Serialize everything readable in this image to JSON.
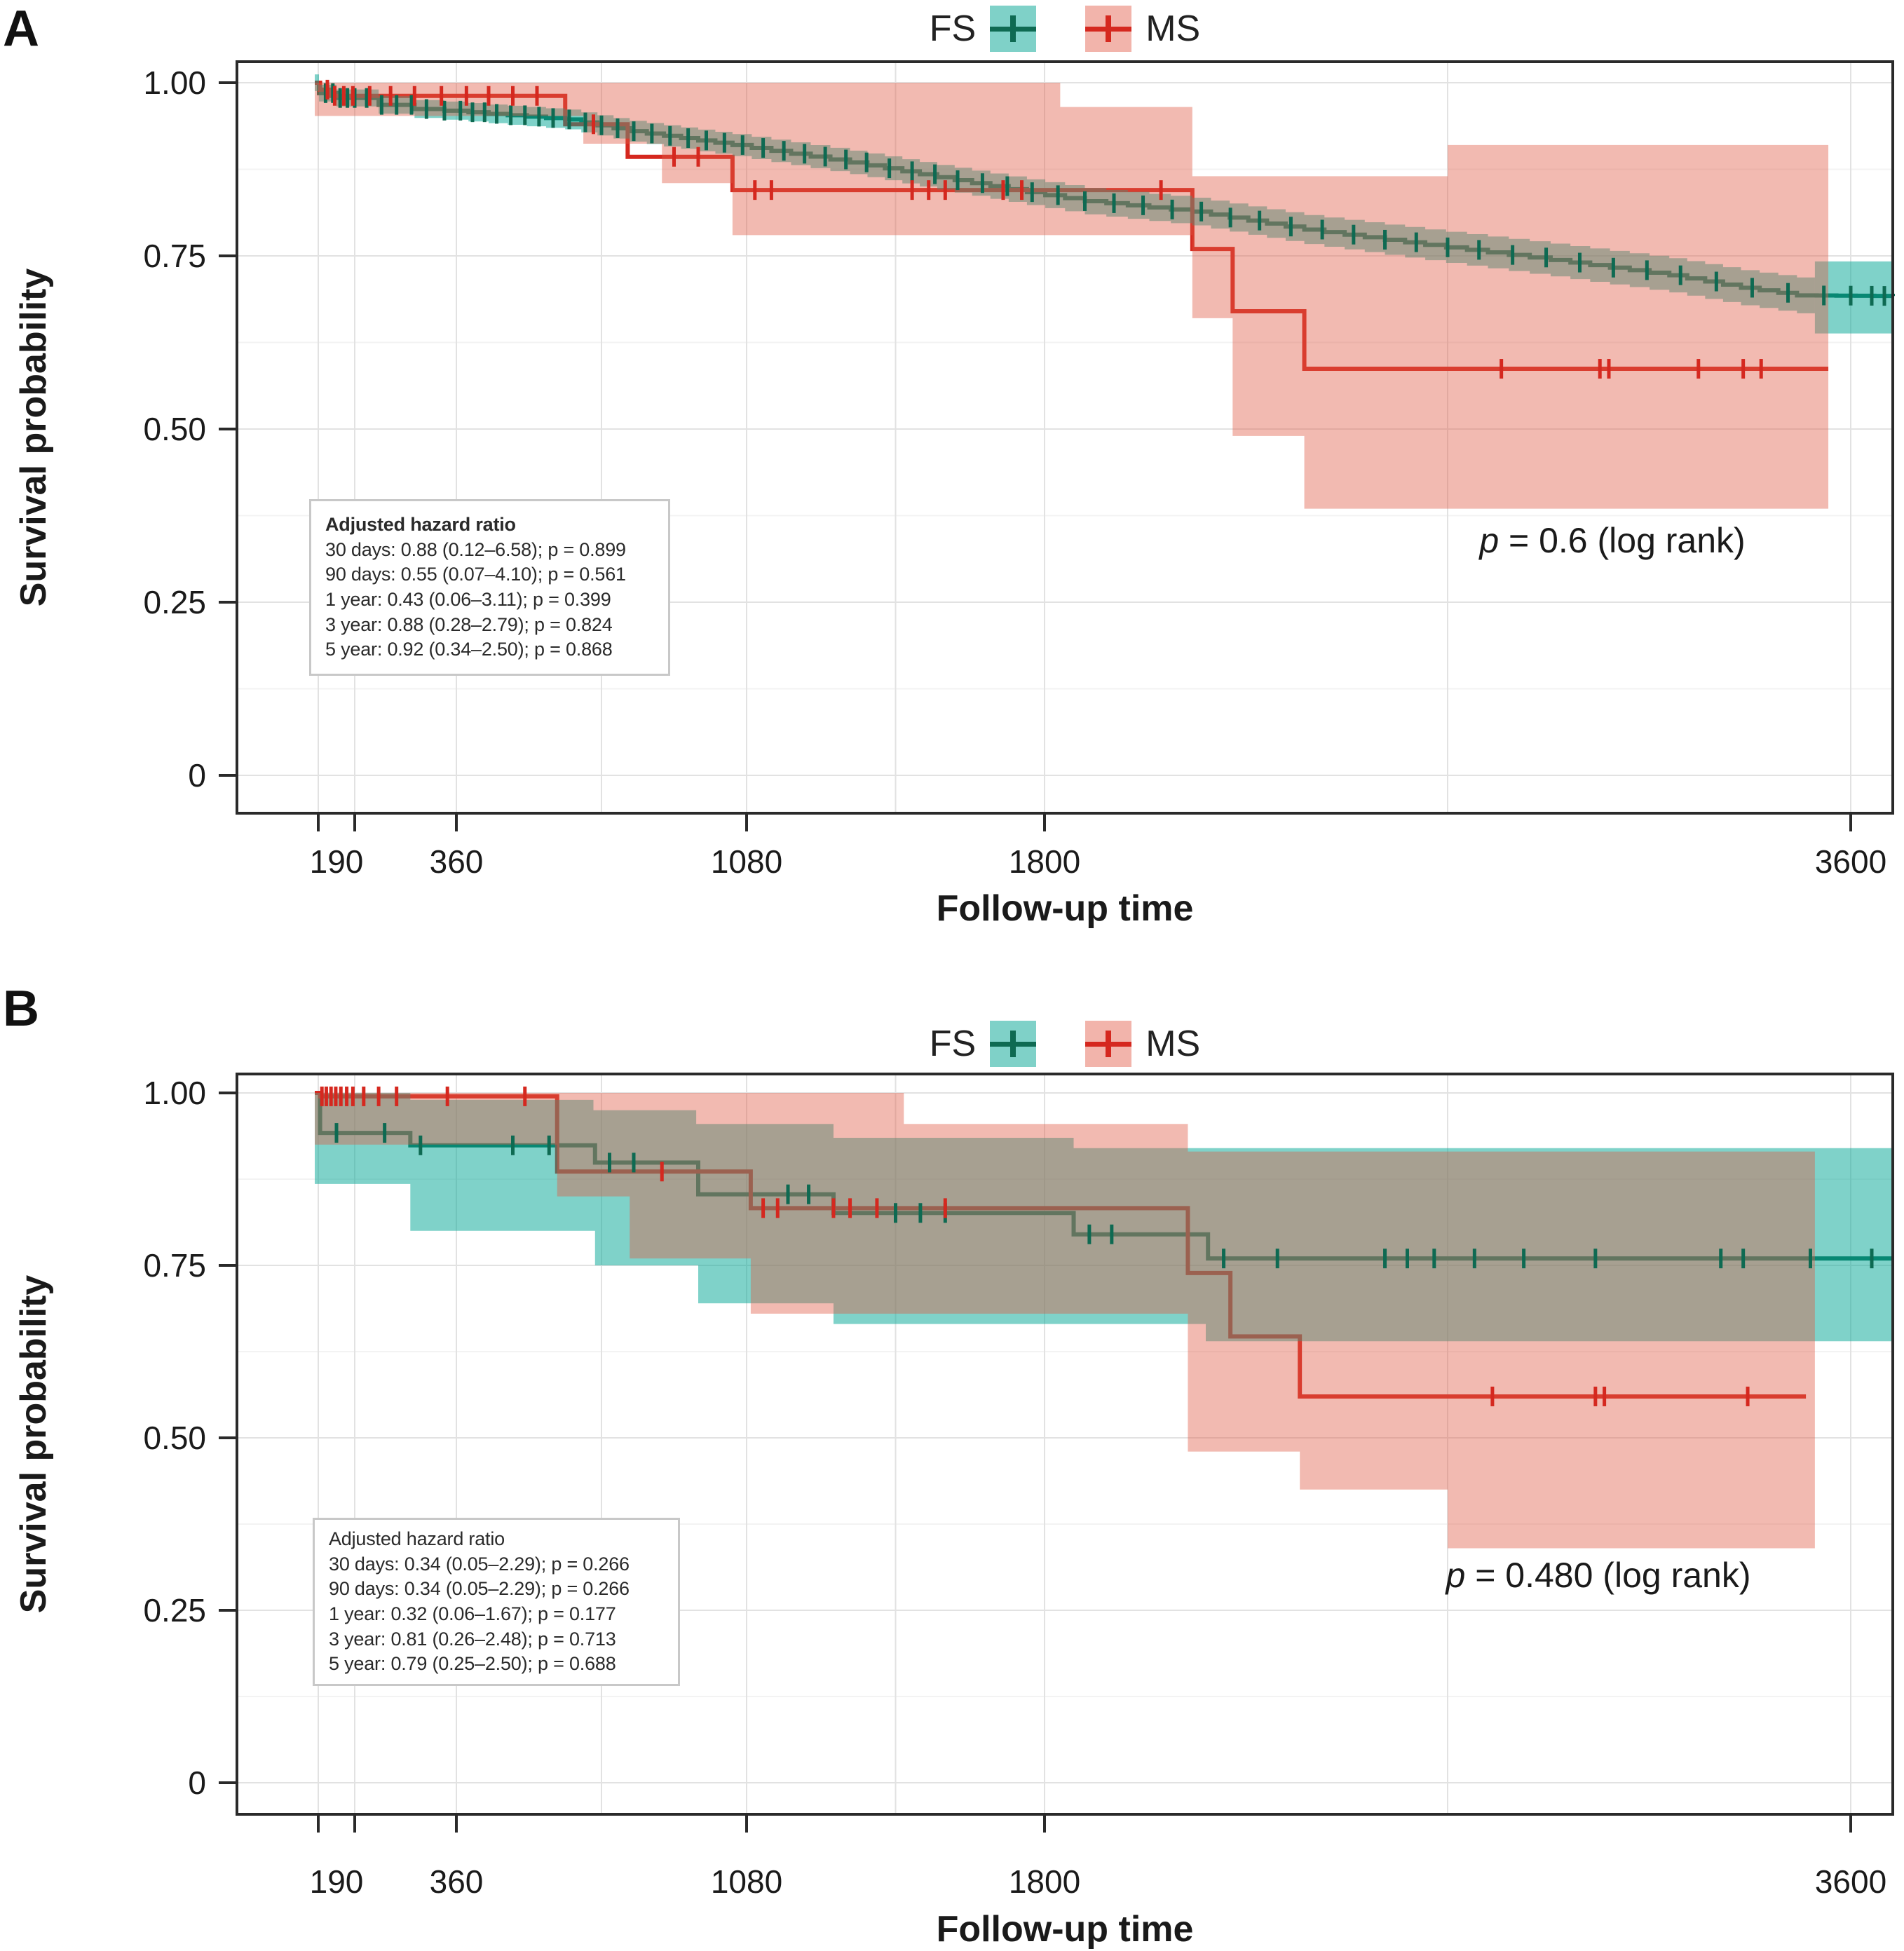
{
  "figure": {
    "panel_a_label": "A",
    "panel_b_label": "B"
  },
  "legend": {
    "fs_label": "FS",
    "ms_label": "MS"
  },
  "colors": {
    "fs_line": "#0e6a52",
    "ms_line": "#d5281f",
    "fs_band": "rgba(0,165,148,0.50)",
    "ms_band": "rgba(224,90,70,0.42)",
    "grid_major": "#e2e2e2",
    "grid_minor": "#f3f3f3",
    "border": "#2a2a2a",
    "tick_text": "#1a1a1a"
  },
  "axes": {
    "y_label": "Survival probability",
    "x_label": "Follow-up time",
    "y_ticks": [
      {
        "v": 1.0,
        "text": "1.00"
      },
      {
        "v": 0.75,
        "text": "0.75"
      },
      {
        "v": 0.5,
        "text": "0.50"
      },
      {
        "v": 0.25,
        "text": "0.25"
      },
      {
        "v": 0.0,
        "text": "0"
      }
    ],
    "x_tick_marks": [
      90,
      190,
      360,
      1080,
      1800,
      3600
    ],
    "x_tick_labels": [
      {
        "t": 190,
        "at": 140,
        "text": "190"
      },
      {
        "t": 360,
        "at": 360,
        "text": "360"
      },
      {
        "t": 1080,
        "at": 1080,
        "text": "1080"
      },
      {
        "t": 1800,
        "at": 1800,
        "text": "1800"
      },
      {
        "t": 3600,
        "at": 3600,
        "text": "3600"
      }
    ],
    "x_gridlines": [
      90,
      190,
      360,
      720,
      1080,
      1440,
      1800,
      2700,
      3600
    ],
    "y_minor_gridlines": [
      0.125,
      0.375,
      0.625,
      0.875
    ],
    "xlim": [
      0,
      3700
    ],
    "ylim": [
      0,
      1.05
    ]
  },
  "chart_data": [
    {
      "type": "line",
      "title": "Kaplan-Meier survival, panel A",
      "xlabel": "Follow-up time",
      "ylabel": "Survival probability",
      "legend_position": "top-center",
      "grid": true,
      "p_annotation": {
        "p_italic": "p",
        "text": " = 0.6 (log rank)"
      },
      "hazard_box": {
        "title": "Adjusted hazard ratio",
        "lines": [
          "30 days: 0.88 (0.12–6.58); p = 0.899",
          "90 days: 0.55 (0.07–4.10); p = 0.561",
          "1 year: 0.43 (0.06–3.11); p = 0.399",
          "3 year: 0.88 (0.28–2.79); p = 0.824",
          "5 year: 0.92 (0.34–2.50); p = 0.868"
        ]
      },
      "series": [
        {
          "name": "FS",
          "dense": true,
          "steps": [
            [
              80,
              1.0
            ],
            [
              92,
              0.985
            ],
            [
              140,
              0.978
            ],
            [
              230,
              0.968
            ],
            [
              290,
              0.962
            ],
            [
              440,
              0.955
            ],
            [
              630,
              0.947
            ],
            [
              790,
              0.93
            ],
            [
              1045,
              0.91
            ],
            [
              1330,
              0.885
            ],
            [
              1625,
              0.855
            ],
            [
              1890,
              0.829
            ],
            [
              2130,
              0.814
            ],
            [
              2380,
              0.788
            ],
            [
              2650,
              0.766
            ],
            [
              2930,
              0.744
            ],
            [
              3195,
              0.722
            ],
            [
              3355,
              0.704
            ],
            [
              3480,
              0.693
            ],
            [
              3700,
              0.692
            ]
          ],
          "censors": [
            110,
            130,
            150,
            170,
            190,
            210,
            235,
            260,
            285,
            310,
            340,
            370,
            400,
            430,
            460,
            495,
            530,
            565,
            600,
            640,
            680,
            720,
            760,
            800,
            845,
            890,
            935,
            980,
            1025,
            1070,
            1120,
            1170,
            1220,
            1270,
            1320,
            1370,
            1425,
            1480,
            1535,
            1590,
            1650,
            1710,
            1770,
            1830,
            1890,
            1955,
            2020,
            2085,
            2150,
            2215,
            2280,
            2350,
            2420,
            2490,
            2560,
            2630,
            2700,
            2770,
            2845,
            2920,
            2995,
            3070,
            3145,
            3220,
            3300,
            3380,
            3460,
            3540,
            3600,
            3650,
            3680
          ],
          "ci": {
            "margin": [
              [
                80,
                0.012
              ],
              [
                800,
                0.015
              ],
              [
                1600,
                0.018
              ],
              [
                2400,
                0.021
              ],
              [
                3000,
                0.024
              ],
              [
                3520,
                0.026
              ]
            ],
            "range": [
              80,
              3520
            ],
            "end_block": {
              "t0": 3520,
              "t1": 3700,
              "upper": 0.742,
              "lower": 0.638
            }
          }
        },
        {
          "name": "MS",
          "dense": false,
          "steps": [
            [
              80,
              1.0
            ],
            [
              95,
              0.99
            ],
            [
              120,
              0.981
            ],
            [
              630,
              0.94
            ],
            [
              785,
              0.893
            ],
            [
              1045,
              0.845
            ],
            [
              2130,
              0.76
            ],
            [
              2220,
              0.67
            ],
            [
              2380,
              0.587
            ],
            [
              3550,
              0.587
            ]
          ],
          "censors": [
            115,
            135,
            160,
            185,
            215,
            250,
            290,
            335,
            385,
            440,
            500,
            560,
            700,
            900,
            960,
            1100,
            1140,
            1480,
            1520,
            1560,
            1700,
            1745,
            2060,
            2820,
            3040,
            3060,
            3260,
            3360,
            3400
          ],
          "ci": {
            "upper": [
              [
                80,
                1835,
                1.0
              ],
              [
                1835,
                2130,
                0.965
              ],
              [
                2130,
                2700,
                0.865
              ],
              [
                2700,
                3550,
                0.91
              ]
            ],
            "lower": [
              [
                80,
                675,
                0.952
              ],
              [
                675,
                870,
                0.912
              ],
              [
                870,
                1045,
                0.855
              ],
              [
                1045,
                2130,
                0.78
              ],
              [
                2130,
                2220,
                0.66
              ],
              [
                2220,
                2380,
                0.49
              ],
              [
                2380,
                3550,
                0.385
              ]
            ]
          }
        }
      ]
    },
    {
      "type": "line",
      "title": "Kaplan-Meier survival, panel B",
      "xlabel": "Follow-up time",
      "ylabel": "Survival probability",
      "legend_position": "top-center",
      "grid": true,
      "p_annotation": {
        "p_italic": "p",
        "text": " = 0.480 (log rank)"
      },
      "hazard_box": {
        "title": "Adjusted hazard ratio",
        "lines": [
          "30 days: 0.34 (0.05–2.29); p = 0.266",
          "90 days: 0.34 (0.05–2.29); p = 0.266",
          "1 year: 0.32 (0.06–1.67); p = 0.177",
          "3 year: 0.81 (0.26–2.48); p = 0.713",
          "5 year: 0.79 (0.25–2.50); p = 0.688"
        ]
      },
      "series": [
        {
          "name": "FS",
          "dense": false,
          "steps": [
            [
              80,
              1.0
            ],
            [
              95,
              0.942
            ],
            [
              283,
              0.924
            ],
            [
              704,
              0.899
            ],
            [
              960,
              0.853
            ],
            [
              1290,
              0.826
            ],
            [
              1865,
              0.795
            ],
            [
              2165,
              0.76
            ],
            [
              3700,
              0.76
            ]
          ],
          "censors": [
            140,
            240,
            300,
            500,
            590,
            740,
            800,
            1180,
            1230,
            1440,
            1500,
            1560,
            1900,
            1950,
            2200,
            2320,
            2560,
            2610,
            2670,
            2760,
            2870,
            3030,
            3310,
            3360,
            3510,
            3650
          ],
          "ci": {
            "upper": [
              [
                80,
                283,
                1.0
              ],
              [
                283,
                700,
                0.99
              ],
              [
                700,
                955,
                0.975
              ],
              [
                955,
                1290,
                0.955
              ],
              [
                1290,
                1865,
                0.935
              ],
              [
                1865,
                3700,
                0.92
              ]
            ],
            "lower": [
              [
                80,
                283,
                0.868
              ],
              [
                283,
                704,
                0.8
              ],
              [
                704,
                960,
                0.75
              ],
              [
                960,
                1290,
                0.695
              ],
              [
                1290,
                2160,
                0.665
              ],
              [
                2160,
                3700,
                0.64
              ]
            ]
          }
        },
        {
          "name": "MS",
          "dense": false,
          "steps": [
            [
              80,
              1.0
            ],
            [
              95,
              0.995
            ],
            [
              610,
              0.886
            ],
            [
              1090,
              0.833
            ],
            [
              2120,
              0.739
            ],
            [
              2215,
              0.647
            ],
            [
              2370,
              0.56
            ],
            [
              3500,
              0.56
            ]
          ],
          "censors": [
            100,
            112,
            125,
            138,
            152,
            168,
            185,
            205,
            230,
            260,
            345,
            530,
            870,
            1120,
            1155,
            1290,
            1330,
            1395,
            1560,
            2800,
            3030,
            3050,
            3370
          ],
          "ci": {
            "upper": [
              [
                80,
                1460,
                1.0
              ],
              [
                1460,
                2120,
                0.955
              ],
              [
                2120,
                3520,
                0.915
              ]
            ],
            "lower": [
              [
                80,
                610,
                0.925
              ],
              [
                610,
                790,
                0.85
              ],
              [
                790,
                1090,
                0.76
              ],
              [
                1090,
                2120,
                0.68
              ],
              [
                2120,
                2370,
                0.48
              ],
              [
                2370,
                2700,
                0.425
              ],
              [
                2700,
                3520,
                0.34
              ]
            ]
          }
        }
      ]
    }
  ]
}
